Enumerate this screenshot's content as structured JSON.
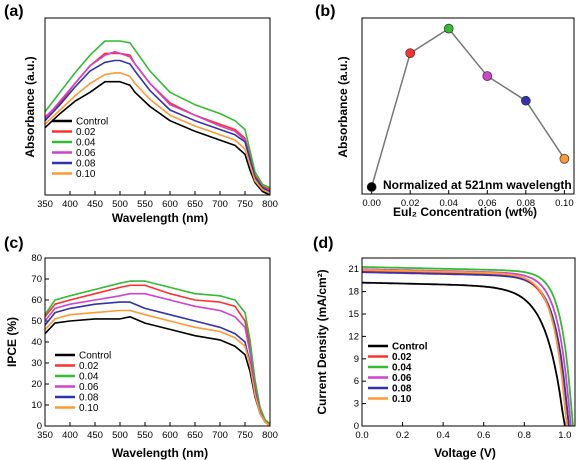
{
  "colors": {
    "Control": "#000000",
    "0.02": "#ff3030",
    "0.04": "#33bb33",
    "0.06": "#cc44cc",
    "0.08": "#3333aa",
    "0.10": "#ff9933"
  },
  "chart_data": [
    {
      "panel": "(a)",
      "type": "line",
      "xlabel": "Wavelength (nm)",
      "ylabel": "Absorbance (a.u.)",
      "xlim": [
        350,
        800
      ],
      "ylim": [
        0,
        1
      ],
      "xticks": [
        350,
        400,
        450,
        500,
        550,
        600,
        650,
        700,
        750,
        800
      ],
      "yticks_shown": false,
      "legend_position": "bottom-left",
      "x": [
        350,
        380,
        410,
        440,
        470,
        490,
        500,
        520,
        530,
        560,
        600,
        650,
        700,
        730,
        750,
        760,
        770,
        785,
        800
      ],
      "series": [
        {
          "name": "Control",
          "values": [
            0.38,
            0.46,
            0.53,
            0.58,
            0.64,
            0.64,
            0.64,
            0.62,
            0.58,
            0.5,
            0.42,
            0.36,
            0.31,
            0.28,
            0.23,
            0.14,
            0.07,
            0.02,
            0.0
          ]
        },
        {
          "name": "0.02",
          "values": [
            0.44,
            0.52,
            0.63,
            0.73,
            0.8,
            0.8,
            0.8,
            0.79,
            0.74,
            0.63,
            0.52,
            0.45,
            0.4,
            0.37,
            0.32,
            0.22,
            0.11,
            0.05,
            0.03
          ]
        },
        {
          "name": "0.04",
          "values": [
            0.47,
            0.58,
            0.69,
            0.79,
            0.87,
            0.87,
            0.87,
            0.86,
            0.82,
            0.7,
            0.58,
            0.51,
            0.46,
            0.42,
            0.37,
            0.25,
            0.13,
            0.06,
            0.04
          ]
        },
        {
          "name": "0.06",
          "values": [
            0.43,
            0.53,
            0.63,
            0.73,
            0.79,
            0.81,
            0.8,
            0.78,
            0.74,
            0.63,
            0.51,
            0.45,
            0.39,
            0.36,
            0.31,
            0.21,
            0.1,
            0.04,
            0.02
          ]
        },
        {
          "name": "0.08",
          "values": [
            0.42,
            0.51,
            0.61,
            0.7,
            0.75,
            0.76,
            0.76,
            0.74,
            0.7,
            0.59,
            0.48,
            0.42,
            0.37,
            0.34,
            0.3,
            0.2,
            0.1,
            0.04,
            0.02
          ]
        },
        {
          "name": "0.10",
          "values": [
            0.4,
            0.48,
            0.56,
            0.63,
            0.68,
            0.69,
            0.69,
            0.67,
            0.63,
            0.54,
            0.45,
            0.39,
            0.34,
            0.31,
            0.26,
            0.17,
            0.08,
            0.03,
            0.01
          ]
        }
      ]
    },
    {
      "panel": "(b)",
      "type": "scatter",
      "xlabel": "EuI₂ Concentration (wt%)",
      "ylabel": "Absorbance (a.u.)",
      "annotation": "Normalized at 521nm wavelength",
      "xlim": [
        -0.005,
        0.105
      ],
      "ylim": [
        0,
        1
      ],
      "xticks": [
        "0.00",
        "0.02",
        "0.04",
        "0.06",
        "0.08",
        "0.10"
      ],
      "yticks_shown": false,
      "points": [
        {
          "x": 0.0,
          "y": 0.04,
          "series": "Control"
        },
        {
          "x": 0.02,
          "y": 0.8,
          "series": "0.02"
        },
        {
          "x": 0.04,
          "y": 0.94,
          "series": "0.04"
        },
        {
          "x": 0.06,
          "y": 0.67,
          "series": "0.06"
        },
        {
          "x": 0.08,
          "y": 0.53,
          "series": "0.08"
        },
        {
          "x": 0.1,
          "y": 0.2,
          "series": "0.10"
        }
      ]
    },
    {
      "panel": "(c)",
      "type": "line",
      "xlabel": "Wavelength (nm)",
      "ylabel": "IPCE (%)",
      "xlim": [
        350,
        800
      ],
      "ylim": [
        0,
        80
      ],
      "xticks": [
        350,
        400,
        450,
        500,
        550,
        600,
        650,
        700,
        750,
        800
      ],
      "yticks": [
        0,
        10,
        20,
        30,
        40,
        50,
        60,
        70,
        80
      ],
      "legend_position": "bottom-left",
      "x": [
        350,
        370,
        400,
        450,
        500,
        520,
        550,
        600,
        650,
        700,
        730,
        750,
        760,
        770,
        780,
        790,
        800
      ],
      "series": [
        {
          "name": "Control",
          "values": [
            44,
            49,
            50,
            51,
            51,
            52,
            49,
            46,
            43,
            41,
            38,
            34,
            26,
            14,
            6,
            2,
            0
          ]
        },
        {
          "name": "0.02",
          "values": [
            52,
            58,
            60,
            63,
            66,
            67,
            67,
            63,
            60,
            59,
            57,
            50,
            38,
            20,
            8,
            3,
            1
          ]
        },
        {
          "name": "0.04",
          "values": [
            53,
            60,
            62,
            65,
            68,
            69,
            69,
            66,
            63,
            62,
            60,
            54,
            41,
            22,
            9,
            3,
            1
          ]
        },
        {
          "name": "0.06",
          "values": [
            50,
            56,
            58,
            60,
            62,
            63,
            63,
            60,
            57,
            55,
            52,
            47,
            35,
            18,
            7,
            2,
            0
          ]
        },
        {
          "name": "0.08",
          "values": [
            48,
            54,
            56,
            58,
            59,
            59,
            56,
            53,
            50,
            47,
            44,
            40,
            30,
            16,
            6,
            2,
            0
          ]
        },
        {
          "name": "0.10",
          "values": [
            46,
            51,
            53,
            54,
            55,
            55,
            53,
            50,
            47,
            45,
            42,
            38,
            29,
            15,
            6,
            2,
            0
          ]
        }
      ]
    },
    {
      "panel": "(d)",
      "type": "line",
      "xlabel": "Voltage (V)",
      "ylabel": "Current Density (mA/cm²)",
      "xlim": [
        0,
        1.05
      ],
      "ylim": [
        0,
        22.5
      ],
      "xticks": [
        "0.0",
        "0.2",
        "0.4",
        "0.6",
        "0.8",
        "1.0"
      ],
      "yticks": [
        0,
        3,
        6,
        9,
        12,
        15,
        18,
        21
      ],
      "legend_position": "bottom-left",
      "series": [
        {
          "name": "Control",
          "jsc": 19.2,
          "voc": 1.0,
          "k": 12
        },
        {
          "name": "0.02",
          "jsc": 20.7,
          "voc": 1.02,
          "k": 16
        },
        {
          "name": "0.04",
          "jsc": 21.3,
          "voc": 1.04,
          "k": 20
        },
        {
          "name": "0.06",
          "jsc": 21.0,
          "voc": 1.03,
          "k": 18
        },
        {
          "name": "0.08",
          "jsc": 20.6,
          "voc": 1.02,
          "k": 17
        },
        {
          "name": "0.10",
          "jsc": 20.9,
          "voc": 1.01,
          "k": 17
        }
      ]
    }
  ]
}
